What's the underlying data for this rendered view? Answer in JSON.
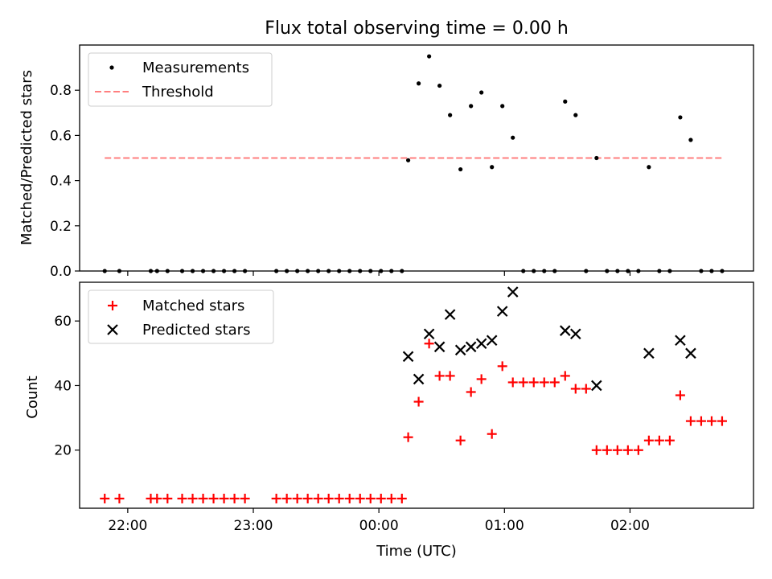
{
  "chart_data": [
    {
      "type": "scatter",
      "title": "Flux total observing time = 0.00 h",
      "xlabel": "",
      "ylabel": "Matched/Predicted stars",
      "ylim": [
        0.0,
        1.0
      ],
      "yticks": [
        "0.0",
        "0.2",
        "0.4",
        "0.6",
        "0.8"
      ],
      "grid": false,
      "legend_position": "top-left",
      "threshold": {
        "name": "Threshold",
        "value": 0.5,
        "color": "#ff7f7f",
        "style": "dashed",
        "x_start": "21:49",
        "x_end": "02:45"
      },
      "series": [
        {
          "name": "Measurements",
          "color": "#000000",
          "marker": "dot",
          "points": [
            [
              "21:49",
              0.0
            ],
            [
              "21:56",
              0.0
            ],
            [
              "22:11",
              0.0
            ],
            [
              "22:14",
              0.0
            ],
            [
              "22:19",
              0.0
            ],
            [
              "22:26",
              0.0
            ],
            [
              "22:31",
              0.0
            ],
            [
              "22:36",
              0.0
            ],
            [
              "22:41",
              0.0
            ],
            [
              "22:46",
              0.0
            ],
            [
              "22:51",
              0.0
            ],
            [
              "22:56",
              0.0
            ],
            [
              "23:11",
              0.0
            ],
            [
              "23:16",
              0.0
            ],
            [
              "23:21",
              0.0
            ],
            [
              "23:26",
              0.0
            ],
            [
              "23:31",
              0.0
            ],
            [
              "23:36",
              0.0
            ],
            [
              "23:41",
              0.0
            ],
            [
              "23:46",
              0.0
            ],
            [
              "23:51",
              0.0
            ],
            [
              "23:56",
              0.0
            ],
            [
              "24:01",
              0.0
            ],
            [
              "24:06",
              0.0
            ],
            [
              "24:11",
              0.0
            ],
            [
              "24:14",
              0.49
            ],
            [
              "24:19",
              0.83
            ],
            [
              "24:24",
              0.95
            ],
            [
              "24:29",
              0.82
            ],
            [
              "24:34",
              0.69
            ],
            [
              "24:39",
              0.45
            ],
            [
              "24:44",
              0.73
            ],
            [
              "24:49",
              0.79
            ],
            [
              "24:54",
              0.46
            ],
            [
              "24:59",
              0.73
            ],
            [
              "25:04",
              0.59
            ],
            [
              "25:09",
              0.0
            ],
            [
              "25:14",
              0.0
            ],
            [
              "25:19",
              0.0
            ],
            [
              "25:24",
              0.0
            ],
            [
              "25:29",
              0.75
            ],
            [
              "25:34",
              0.69
            ],
            [
              "25:39",
              0.0
            ],
            [
              "25:44",
              0.5
            ],
            [
              "25:49",
              0.0
            ],
            [
              "25:54",
              0.0
            ],
            [
              "25:59",
              0.0
            ],
            [
              "26:04",
              0.0
            ],
            [
              "26:09",
              0.46
            ],
            [
              "26:14",
              0.0
            ],
            [
              "26:19",
              0.0
            ],
            [
              "26:24",
              0.68
            ],
            [
              "26:29",
              0.58
            ],
            [
              "26:34",
              0.0
            ],
            [
              "26:39",
              0.0
            ],
            [
              "26:44",
              0.0
            ]
          ]
        }
      ]
    },
    {
      "type": "scatter",
      "title": "",
      "xlabel": "Time (UTC)",
      "ylabel": "Count",
      "ylim": [
        2,
        72
      ],
      "yticks": [
        "20",
        "40",
        "60"
      ],
      "xticks": [
        "22:00",
        "23:00",
        "00:00",
        "01:00",
        "02:00"
      ],
      "xlim": [
        "21:37",
        "02:59"
      ],
      "grid": false,
      "legend_position": "top-left",
      "series": [
        {
          "name": "Matched stars",
          "color": "#ff0000",
          "marker": "plus",
          "points": [
            [
              "21:49",
              5
            ],
            [
              "21:56",
              5
            ],
            [
              "22:11",
              5
            ],
            [
              "22:14",
              5
            ],
            [
              "22:19",
              5
            ],
            [
              "22:26",
              5
            ],
            [
              "22:31",
              5
            ],
            [
              "22:36",
              5
            ],
            [
              "22:41",
              5
            ],
            [
              "22:46",
              5
            ],
            [
              "22:51",
              5
            ],
            [
              "22:56",
              5
            ],
            [
              "23:11",
              5
            ],
            [
              "23:16",
              5
            ],
            [
              "23:21",
              5
            ],
            [
              "23:26",
              5
            ],
            [
              "23:31",
              5
            ],
            [
              "23:36",
              5
            ],
            [
              "23:41",
              5
            ],
            [
              "23:46",
              5
            ],
            [
              "23:51",
              5
            ],
            [
              "23:56",
              5
            ],
            [
              "24:01",
              5
            ],
            [
              "24:06",
              5
            ],
            [
              "24:11",
              5
            ],
            [
              "24:14",
              24
            ],
            [
              "24:19",
              35
            ],
            [
              "24:24",
              53
            ],
            [
              "24:29",
              43
            ],
            [
              "24:34",
              43
            ],
            [
              "24:39",
              23
            ],
            [
              "24:44",
              38
            ],
            [
              "24:49",
              42
            ],
            [
              "24:54",
              25
            ],
            [
              "24:59",
              46
            ],
            [
              "25:04",
              41
            ],
            [
              "25:09",
              41
            ],
            [
              "25:14",
              41
            ],
            [
              "25:19",
              41
            ],
            [
              "25:24",
              41
            ],
            [
              "25:29",
              43
            ],
            [
              "25:34",
              39
            ],
            [
              "25:39",
              39
            ],
            [
              "25:44",
              20
            ],
            [
              "25:49",
              20
            ],
            [
              "25:54",
              20
            ],
            [
              "25:59",
              20
            ],
            [
              "26:04",
              20
            ],
            [
              "26:09",
              23
            ],
            [
              "26:14",
              23
            ],
            [
              "26:19",
              23
            ],
            [
              "26:24",
              37
            ],
            [
              "26:29",
              29
            ],
            [
              "26:34",
              29
            ],
            [
              "26:39",
              29
            ],
            [
              "26:44",
              29
            ]
          ]
        },
        {
          "name": "Predicted stars",
          "color": "#000000",
          "marker": "x",
          "points": [
            [
              "24:14",
              49
            ],
            [
              "24:19",
              42
            ],
            [
              "24:24",
              56
            ],
            [
              "24:29",
              52
            ],
            [
              "24:34",
              62
            ],
            [
              "24:39",
              51
            ],
            [
              "24:44",
              52
            ],
            [
              "24:49",
              53
            ],
            [
              "24:54",
              54
            ],
            [
              "24:59",
              63
            ],
            [
              "25:04",
              69
            ],
            [
              "25:29",
              57
            ],
            [
              "25:34",
              56
            ],
            [
              "25:44",
              40
            ],
            [
              "26:09",
              50
            ],
            [
              "26:24",
              54
            ],
            [
              "26:29",
              50
            ]
          ]
        }
      ]
    }
  ]
}
